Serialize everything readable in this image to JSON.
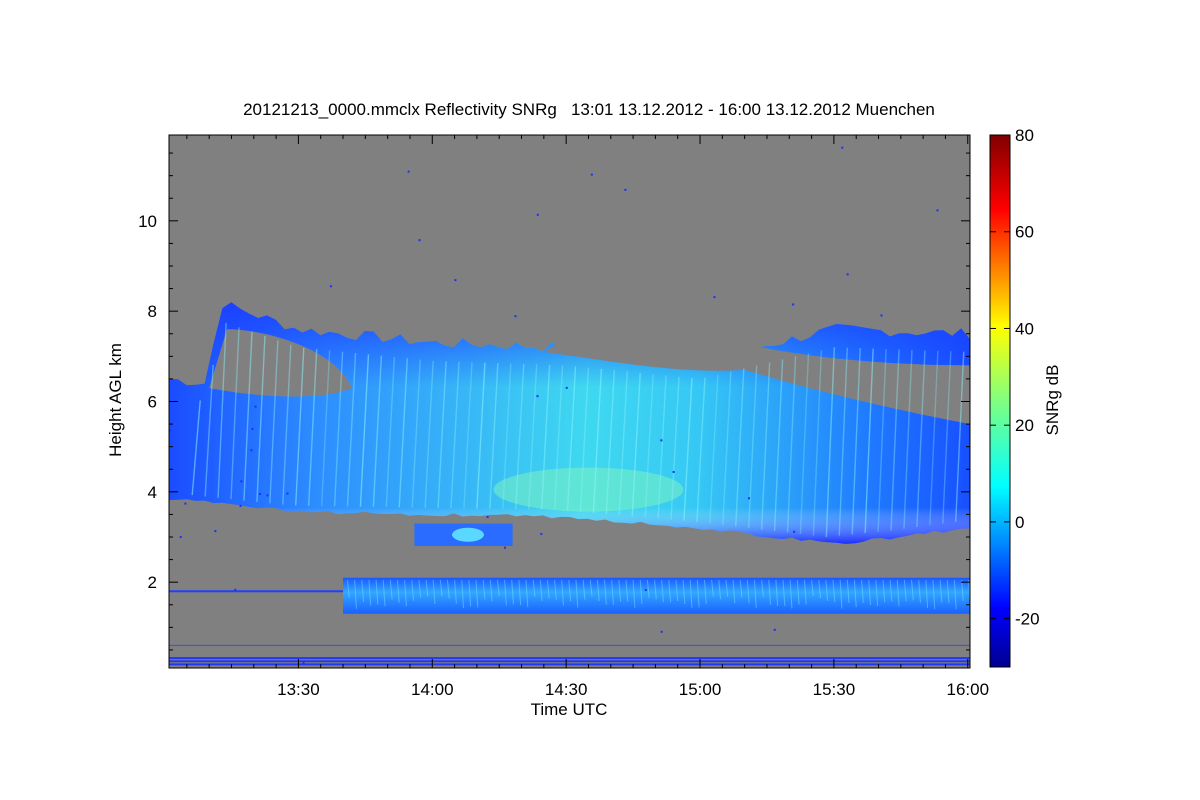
{
  "chart_data": {
    "type": "heatmap",
    "title": "20121213_0000.mmclx Reflectivity SNRg   13:01 13.12.2012 - 16:00 13.12.2012 Muenchen",
    "xlabel": "Time UTC",
    "ylabel": "Height AGL km",
    "x_ticks": [
      "13:30",
      "14:00",
      "14:30",
      "15:00",
      "15:30",
      "16:00"
    ],
    "x_tick_minutes": [
      30,
      60,
      90,
      120,
      150,
      180
    ],
    "xlim_minutes": [
      1,
      180.5
    ],
    "y_ticks": [
      2,
      4,
      6,
      8,
      10
    ],
    "ylim": [
      0.1,
      11.9
    ],
    "colorbar": {
      "label": "SNRg dB",
      "ticks": [
        -20,
        0,
        20,
        40,
        60,
        80
      ],
      "range": [
        -30,
        80
      ],
      "colormap": "jet"
    },
    "background_color": "#808080",
    "echo_features": [
      {
        "name": "upper-cloud",
        "x_start_min": 1,
        "x_end_min": 180.5,
        "top_km": [
          [
            1,
            6.5
          ],
          [
            10,
            6.4
          ],
          [
            12,
            8.2
          ],
          [
            30,
            7.6
          ],
          [
            60,
            7.3
          ],
          [
            90,
            7.2
          ],
          [
            120,
            6.9
          ],
          [
            150,
            7.6
          ],
          [
            180,
            7.5
          ]
        ],
        "base_km": [
          [
            1,
            3.85
          ],
          [
            30,
            3.55
          ],
          [
            60,
            3.5
          ],
          [
            90,
            3.45
          ],
          [
            120,
            3.2
          ],
          [
            150,
            2.85
          ],
          [
            165,
            3.0
          ],
          [
            180,
            3.2
          ]
        ]
      },
      {
        "name": "small-cell",
        "x_start_min": 56,
        "x_end_min": 78,
        "top_km": 3.3,
        "base_km": 2.8
      },
      {
        "name": "low-layer",
        "x_start_min": 40,
        "x_end_min": 180.5,
        "top_km": 2.1,
        "base_km": 1.3
      }
    ]
  }
}
